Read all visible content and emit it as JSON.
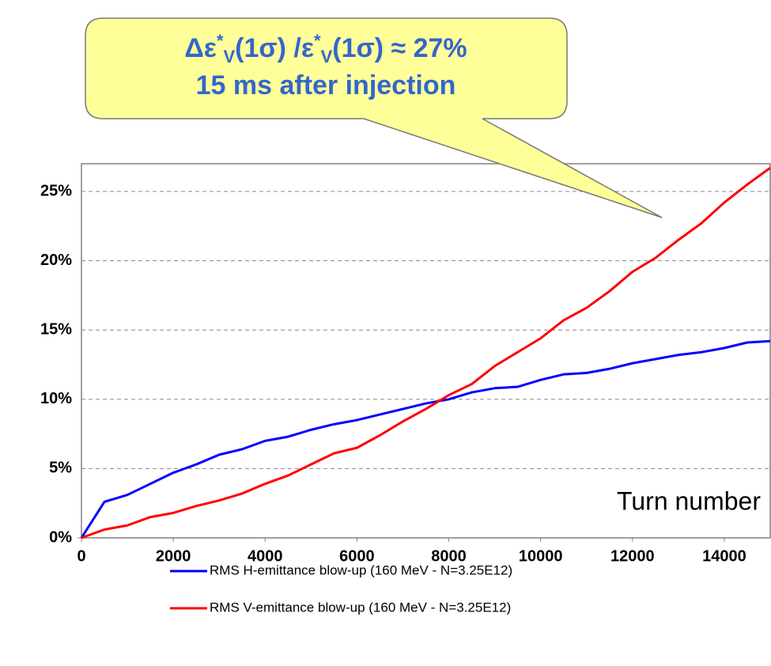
{
  "chart_data": {
    "type": "line",
    "annotation": {
      "line1": [
        "Δε",
        "*",
        "V",
        "(1σ) /ε",
        "*",
        "V",
        "(1σ) ≈ 27%"
      ],
      "line2": "15 ms after injection"
    },
    "x_label": "Turn number",
    "x": [
      0,
      500,
      1000,
      1500,
      2000,
      2500,
      3000,
      3500,
      4000,
      4500,
      5000,
      5500,
      6000,
      6500,
      7000,
      7500,
      8000,
      8500,
      9000,
      9500,
      10000,
      10500,
      11000,
      11500,
      12000,
      12500,
      13000,
      13500,
      14000,
      14500,
      15000
    ],
    "series": [
      {
        "name": "RMS H-emittance blow-up (160 MeV - N=3.25E12)",
        "color": "#0000ff",
        "values": [
          0,
          2.6,
          3.1,
          3.9,
          4.7,
          5.3,
          6.0,
          6.4,
          7.0,
          7.3,
          7.8,
          8.2,
          8.5,
          8.9,
          9.3,
          9.7,
          10.0,
          10.5,
          10.8,
          10.9,
          11.4,
          11.8,
          11.9,
          12.2,
          12.6,
          12.9,
          13.2,
          13.4,
          13.7,
          14.1,
          14.2
        ]
      },
      {
        "name": "RMS V-emittance blow-up (160 MeV - N=3.25E12)",
        "color": "#ff0000",
        "values": [
          0,
          0.6,
          0.9,
          1.5,
          1.8,
          2.3,
          2.7,
          3.2,
          3.9,
          4.5,
          5.3,
          6.1,
          6.5,
          7.4,
          8.4,
          9.3,
          10.3,
          11.1,
          12.4,
          13.4,
          14.4,
          15.7,
          16.6,
          17.8,
          19.2,
          20.2,
          21.5,
          22.7,
          24.2,
          25.5,
          26.7
        ]
      }
    ],
    "xlim": [
      0,
      15000
    ],
    "xticks": [
      0,
      2000,
      4000,
      6000,
      8000,
      10000,
      12000,
      14000
    ],
    "ylim": [
      0,
      27
    ],
    "yticks": [
      {
        "value": 0,
        "label": "0%"
      },
      {
        "value": 5,
        "label": "5%"
      },
      {
        "value": 10,
        "label": "10%"
      },
      {
        "value": 15,
        "label": "15%"
      },
      {
        "value": 20,
        "label": "20%"
      },
      {
        "value": 25,
        "label": "25%"
      }
    ],
    "grid": true
  }
}
